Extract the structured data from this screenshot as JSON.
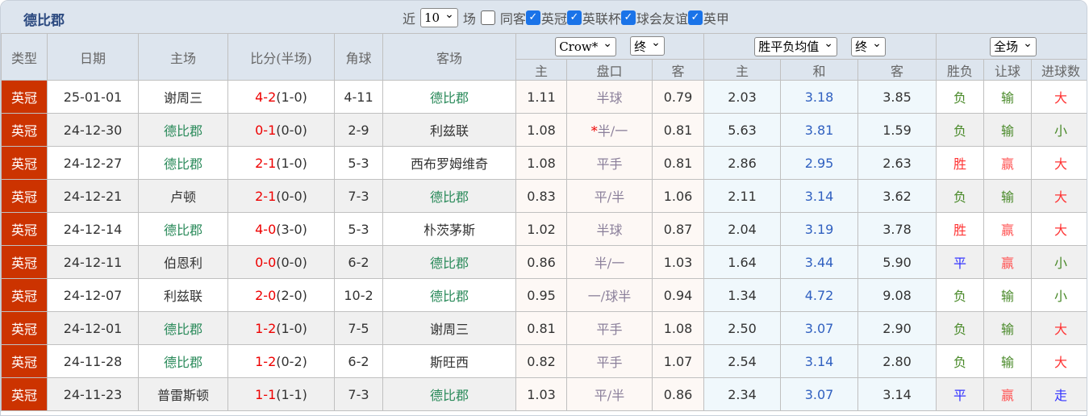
{
  "header": {
    "title": "德比郡",
    "recent_label": "近",
    "recent_value": "10",
    "matches_label": "场",
    "filters": [
      {
        "label": "同客",
        "checked": false
      },
      {
        "label": "英冠",
        "checked": true
      },
      {
        "label": "英联杯",
        "checked": true
      },
      {
        "label": "球会友谊",
        "checked": true
      },
      {
        "label": "英甲",
        "checked": true
      }
    ]
  },
  "columns": {
    "type": "类型",
    "date": "日期",
    "home": "主场",
    "score": "比分(半场)",
    "corner": "角球",
    "away": "客场",
    "crown_select": "Crow*",
    "crown_stage": "终",
    "avg_select": "胜平负均值",
    "avg_stage": "终",
    "scope_select": "全场",
    "crown_home": "主",
    "crown_line": "盘口",
    "crown_away": "客",
    "avg_home": "主",
    "avg_draw": "和",
    "avg_away": "客",
    "result": "胜负",
    "handicap": "让球",
    "goals": "进球数"
  },
  "colors": {
    "type_bg": "#cc3300",
    "score_red": "#ee0000",
    "team_green": "#2a8a5a"
  },
  "rows": [
    {
      "type": "英冠",
      "date": "25-01-01",
      "home": "谢周三",
      "ft": "4-2",
      "ht": "(1-0)",
      "corner": "4-11",
      "away": "德比郡",
      "ch": "1.11",
      "line_mark": "",
      "line": "半球",
      "ca": "0.79",
      "ah": "2.03",
      "ad": "3.18",
      "aa": "3.85",
      "res": "负",
      "hc": "输",
      "goals": "大"
    },
    {
      "type": "英冠",
      "date": "24-12-30",
      "home": "德比郡",
      "ft": "0-1",
      "ht": "(0-0)",
      "corner": "2-9",
      "away": "利兹联",
      "ch": "1.08",
      "line_mark": "*",
      "line": "半/一",
      "ca": "0.81",
      "ah": "5.63",
      "ad": "3.81",
      "aa": "1.59",
      "res": "负",
      "hc": "输",
      "goals": "小"
    },
    {
      "type": "英冠",
      "date": "24-12-27",
      "home": "德比郡",
      "ft": "2-1",
      "ht": "(1-0)",
      "corner": "5-3",
      "away": "西布罗姆维奇",
      "ch": "1.08",
      "line_mark": "",
      "line": "平手",
      "ca": "0.81",
      "ah": "2.86",
      "ad": "2.95",
      "aa": "2.63",
      "res": "胜",
      "hc": "赢",
      "goals": "大"
    },
    {
      "type": "英冠",
      "date": "24-12-21",
      "home": "卢顿",
      "ft": "2-1",
      "ht": "(0-0)",
      "corner": "7-3",
      "away": "德比郡",
      "ch": "0.83",
      "line_mark": "",
      "line": "平/半",
      "ca": "1.06",
      "ah": "2.11",
      "ad": "3.14",
      "aa": "3.62",
      "res": "负",
      "hc": "输",
      "goals": "大"
    },
    {
      "type": "英冠",
      "date": "24-12-14",
      "home": "德比郡",
      "ft": "4-0",
      "ht": "(3-0)",
      "corner": "5-3",
      "away": "朴茨茅斯",
      "ch": "1.02",
      "line_mark": "",
      "line": "半球",
      "ca": "0.87",
      "ah": "2.04",
      "ad": "3.19",
      "aa": "3.78",
      "res": "胜",
      "hc": "赢",
      "goals": "大"
    },
    {
      "type": "英冠",
      "date": "24-12-11",
      "home": "伯恩利",
      "ft": "0-0",
      "ht": "(0-0)",
      "corner": "6-2",
      "away": "德比郡",
      "ch": "0.86",
      "line_mark": "",
      "line": "半/一",
      "ca": "1.03",
      "ah": "1.64",
      "ad": "3.44",
      "aa": "5.90",
      "res": "平",
      "hc": "赢",
      "goals": "小"
    },
    {
      "type": "英冠",
      "date": "24-12-07",
      "home": "利兹联",
      "ft": "2-0",
      "ht": "(2-0)",
      "corner": "10-2",
      "away": "德比郡",
      "ch": "0.95",
      "line_mark": "",
      "line": "一/球半",
      "ca": "0.94",
      "ah": "1.34",
      "ad": "4.72",
      "aa": "9.08",
      "res": "负",
      "hc": "输",
      "goals": "小"
    },
    {
      "type": "英冠",
      "date": "24-12-01",
      "home": "德比郡",
      "ft": "1-2",
      "ht": "(1-0)",
      "corner": "7-5",
      "away": "谢周三",
      "ch": "0.81",
      "line_mark": "",
      "line": "平手",
      "ca": "1.08",
      "ah": "2.50",
      "ad": "3.07",
      "aa": "2.90",
      "res": "负",
      "hc": "输",
      "goals": "大"
    },
    {
      "type": "英冠",
      "date": "24-11-28",
      "home": "德比郡",
      "ft": "1-2",
      "ht": "(0-2)",
      "corner": "6-2",
      "away": "斯旺西",
      "ch": "0.82",
      "line_mark": "",
      "line": "平手",
      "ca": "1.07",
      "ah": "2.54",
      "ad": "3.14",
      "aa": "2.80",
      "res": "负",
      "hc": "输",
      "goals": "大"
    },
    {
      "type": "英冠",
      "date": "24-11-23",
      "home": "普雷斯顿",
      "ft": "1-1",
      "ht": "(1-1)",
      "corner": "7-3",
      "away": "德比郡",
      "ch": "1.03",
      "line_mark": "",
      "line": "平/半",
      "ca": "0.86",
      "ah": "2.34",
      "ad": "3.07",
      "aa": "3.14",
      "res": "平",
      "hc": "赢",
      "goals": "走"
    }
  ]
}
